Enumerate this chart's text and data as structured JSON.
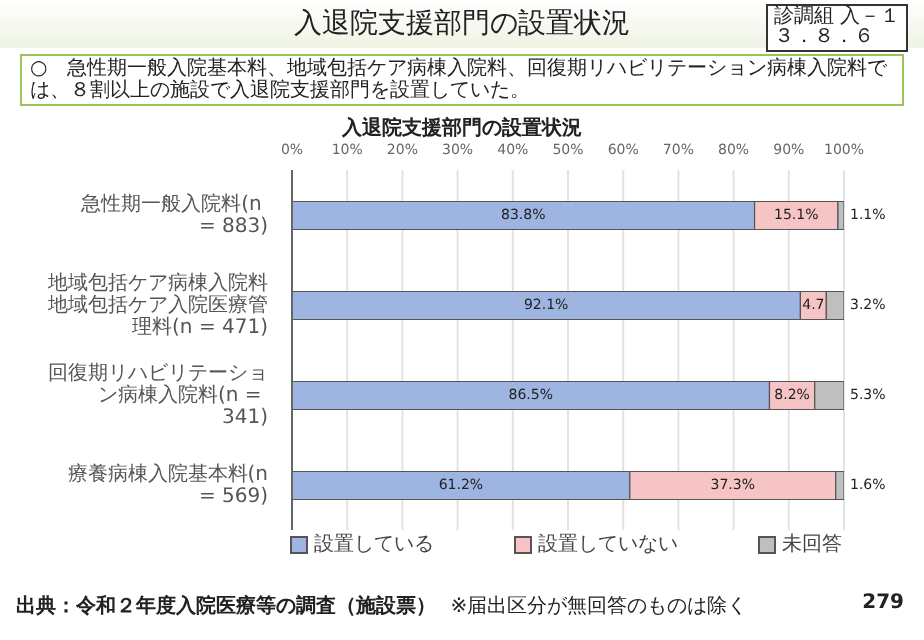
{
  "chart_data": {
    "type": "bar",
    "orientation": "horizontal",
    "stacked": true,
    "title": "入退院支援部門の設置状況",
    "categories": [
      "急性期一般入院料(n = 883)",
      "地域包括ケア病棟入院料地域包括ケア入院医療管理料(n = 471)",
      "回復期リハビリテーション病棟入院料(n = 341)",
      "療養病棟入院基本料(n = 569)"
    ],
    "series": [
      {
        "name": "設置している",
        "color": "#9db5e0",
        "values": [
          83.8,
          92.1,
          86.5,
          61.2
        ],
        "value_labels": [
          "83.8%",
          "92.1%",
          "86.5%",
          "61.2%"
        ]
      },
      {
        "name": "設置していない",
        "color": "#f6c4c4",
        "values": [
          15.1,
          4.7,
          8.2,
          37.3
        ],
        "value_labels": [
          "15.1%",
          "4.7",
          "8.2%",
          "37.3%"
        ]
      },
      {
        "name": "未回答",
        "color": "#bfbfbf",
        "values": [
          1.1,
          3.2,
          5.3,
          1.6
        ],
        "value_labels": [
          "1.1%",
          "3.2%",
          "5.3%",
          "1.6%"
        ]
      }
    ],
    "xlim": [
      0,
      100
    ],
    "xticks": [
      {
        "value": 0,
        "label": "0%"
      },
      {
        "value": 10,
        "label": "10%"
      },
      {
        "value": 20,
        "label": "20%"
      },
      {
        "value": 30,
        "label": "30%"
      },
      {
        "value": 40,
        "label": "40%"
      },
      {
        "value": 50,
        "label": "50%"
      },
      {
        "value": 60,
        "label": "60%"
      },
      {
        "value": 70,
        "label": "70%"
      },
      {
        "value": 80,
        "label": "80%"
      },
      {
        "value": 90,
        "label": "90%"
      },
      {
        "value": 100,
        "label": "100%"
      }
    ],
    "grid": "x",
    "legend": "bottom",
    "annotations": [
      "入退院支援部門の設置状況",
      "診調組 入－１",
      "３．８．６",
      "○　急性期一般入院基本料、地域包括ケア病棟入院料、回復期リハビリテーション病棟入院料では、８割以上の施設で入退院支援部門を設置していた。",
      "出典：令和２年度入院医療等の調査（施設票）",
      "※届出区分が無回答のものは除く",
      "279"
    ]
  }
}
